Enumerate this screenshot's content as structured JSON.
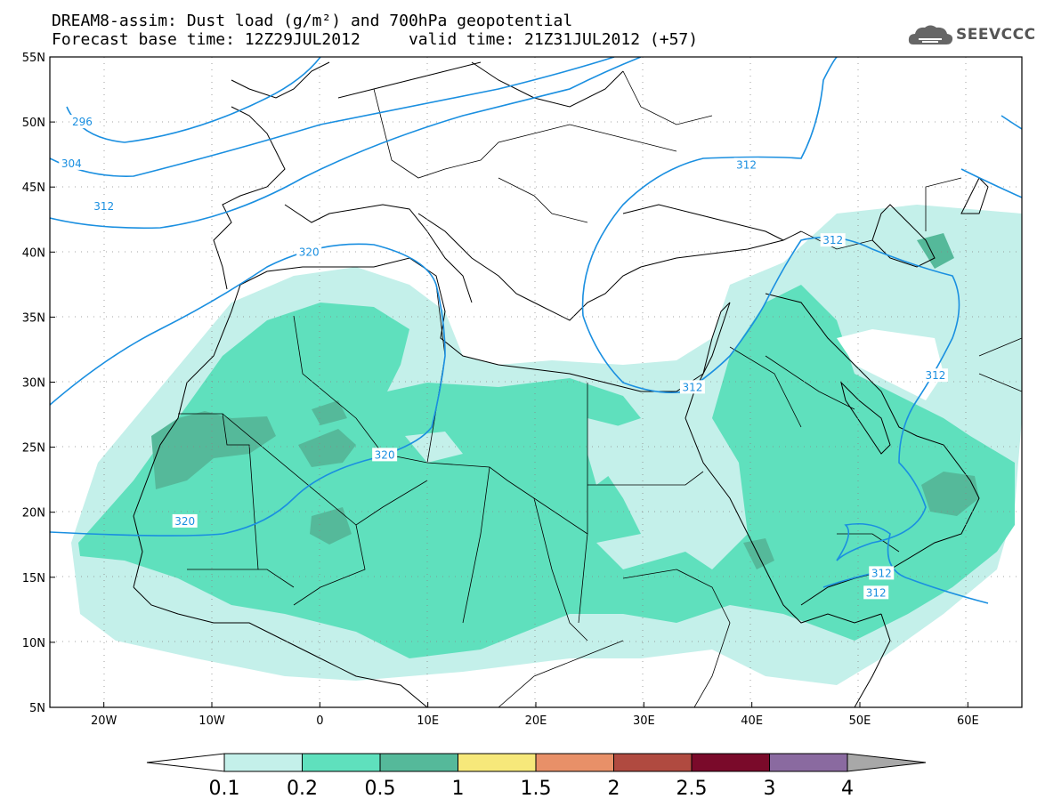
{
  "title": {
    "line1": "DREAM8-assim: Dust load (g/m²) and 700hPa geopotential",
    "line2": "Forecast base time: 12Z29JUL2012     valid time: 21Z31JUL2012 (+57)"
  },
  "logo": {
    "text": "SEEVCCC",
    "icon": "cloud-icon"
  },
  "axes": {
    "lat_labels": [
      "55N",
      "50N",
      "45N",
      "40N",
      "35N",
      "30N",
      "25N",
      "20N",
      "15N",
      "10N",
      "5N"
    ],
    "lon_labels": [
      "20W",
      "10W",
      "0",
      "10E",
      "20E",
      "30E",
      "40E",
      "50E",
      "60E"
    ]
  },
  "contours": {
    "labels": [
      {
        "text": "296",
        "lon": -22,
        "lat": 50
      },
      {
        "text": "304",
        "lon": -23,
        "lat": 46.8
      },
      {
        "text": "312",
        "lon": -20,
        "lat": 43.5
      },
      {
        "text": "320",
        "lon": -1,
        "lat": 40
      },
      {
        "text": "320",
        "lon": 6,
        "lat": 24.4
      },
      {
        "text": "320",
        "lon": -12.5,
        "lat": 19.3
      },
      {
        "text": "312",
        "lon": 39.5,
        "lat": 46.7
      },
      {
        "text": "312",
        "lon": 47.5,
        "lat": 40.9
      },
      {
        "text": "312",
        "lon": 34.5,
        "lat": 29.6
      },
      {
        "text": "312",
        "lon": 57,
        "lat": 30.5
      },
      {
        "text": "312",
        "lon": 52,
        "lat": 15.3
      },
      {
        "text": "312",
        "lon": 51.5,
        "lat": 13.8
      }
    ],
    "color": "#1a8fe0"
  },
  "dust_colors": {
    "c01": "#c4f0ea",
    "c02": "#5fe0bd",
    "c05": "#55b99a"
  },
  "colorbar": {
    "colors": [
      "#c4f0ea",
      "#5fe0bd",
      "#55b99a",
      "#f6e87a",
      "#e89068",
      "#b04a40",
      "#7a0a2a",
      "#8a6aa0"
    ],
    "labels": [
      "0.1",
      "0.2",
      "0.5",
      "1",
      "1.5",
      "2",
      "2.5",
      "3",
      "4"
    ],
    "under_color": "#ffffff",
    "over_color": "#a8a8a8"
  }
}
